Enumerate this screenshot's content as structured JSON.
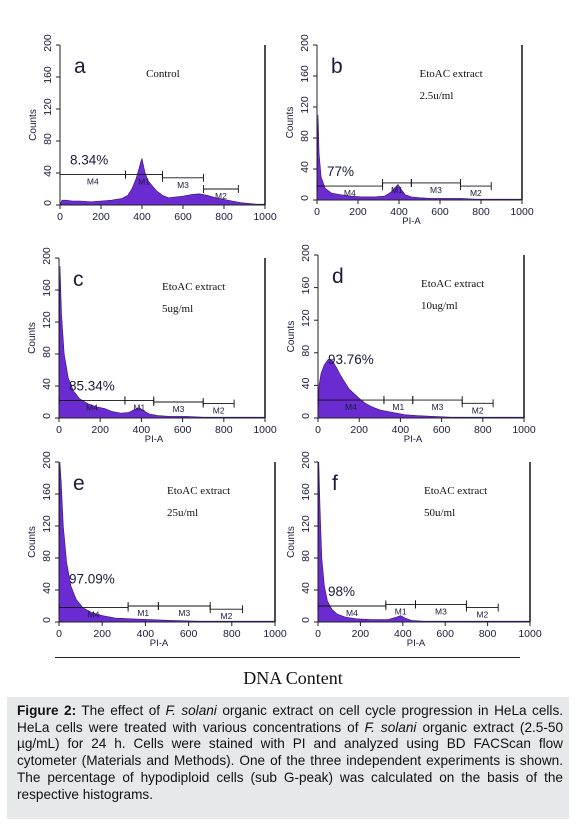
{
  "chart_data": [
    {
      "type": "area",
      "panel_letter": "a",
      "label_lines": [
        "Control"
      ],
      "percent_label": "8.34%",
      "ylabel": "Counts",
      "xlabel": "",
      "ylim": [
        0,
        200
      ],
      "xlim": [
        0,
        1000
      ],
      "yticks": [
        "0",
        "40",
        "80",
        "120",
        "160",
        "200"
      ],
      "xticks": [
        "0",
        "200",
        "400",
        "600",
        "800",
        "1000"
      ],
      "x": [
        0,
        10,
        30,
        60,
        100,
        150,
        200,
        250,
        300,
        330,
        350,
        370,
        385,
        395,
        400,
        405,
        415,
        430,
        450,
        470,
        500,
        530,
        560,
        600,
        640,
        680,
        720,
        760,
        800,
        840,
        880,
        920,
        960,
        1000
      ],
      "values": [
        0,
        6,
        6,
        5,
        5,
        4,
        5,
        6,
        8,
        12,
        20,
        32,
        45,
        55,
        58,
        52,
        40,
        30,
        24,
        18,
        12,
        9,
        10,
        11,
        13,
        14,
        12,
        9,
        7,
        5,
        3,
        2,
        1,
        1
      ],
      "gates": [
        {
          "name": "M4",
          "x0": 0,
          "x1": 320,
          "y": 38
        },
        {
          "name": "M1",
          "x0": 320,
          "x1": 500,
          "y": 38
        },
        {
          "name": "M3",
          "x0": 500,
          "x1": 700,
          "y": 34
        },
        {
          "name": "M2",
          "x0": 700,
          "x1": 870,
          "y": 20
        }
      ],
      "color": "#6a2bd1"
    },
    {
      "type": "area",
      "panel_letter": "b",
      "label_lines": [
        "EtoAC extract",
        "2.5u/ml"
      ],
      "percent_label": "77%",
      "ylabel": "Counts",
      "xlabel": "PI-A",
      "ylim": [
        0,
        200
      ],
      "xlim": [
        0,
        1000
      ],
      "yticks": [
        "0",
        "40",
        "80",
        "120",
        "160",
        "200"
      ],
      "xticks": [
        "0",
        "200",
        "400",
        "600",
        "800",
        "1000"
      ],
      "x": [
        0,
        5,
        10,
        20,
        40,
        70,
        110,
        160,
        220,
        280,
        330,
        360,
        380,
        395,
        410,
        430,
        460,
        500,
        560,
        620,
        700,
        780,
        860,
        940,
        1000
      ],
      "values": [
        0,
        110,
        60,
        30,
        15,
        9,
        7,
        5,
        4,
        4,
        5,
        10,
        16,
        20,
        14,
        7,
        4,
        3,
        2,
        2,
        2,
        1,
        1,
        1,
        1
      ],
      "gates": [
        {
          "name": "M4",
          "x0": 0,
          "x1": 320,
          "y": 18
        },
        {
          "name": "M1",
          "x0": 320,
          "x1": 460,
          "y": 22
        },
        {
          "name": "M3",
          "x0": 460,
          "x1": 700,
          "y": 22
        },
        {
          "name": "M2",
          "x0": 700,
          "x1": 850,
          "y": 18
        }
      ],
      "color": "#6a2bd1"
    },
    {
      "type": "area",
      "panel_letter": "c",
      "label_lines": [
        "EtoAC extract",
        "5ug/ml"
      ],
      "percent_label": "85.34%",
      "ylabel": "Counts",
      "xlabel": "PI-A",
      "ylim": [
        0,
        200
      ],
      "xlim": [
        0,
        1000
      ],
      "yticks": [
        "0",
        "40",
        "80",
        "120",
        "160",
        "200"
      ],
      "xticks": [
        "0",
        "200",
        "400",
        "600",
        "800",
        "1000"
      ],
      "x": [
        0,
        5,
        12,
        25,
        45,
        70,
        100,
        140,
        180,
        220,
        260,
        300,
        340,
        370,
        390,
        410,
        440,
        480,
        540,
        620,
        700,
        800,
        900,
        1000
      ],
      "values": [
        0,
        190,
        130,
        80,
        50,
        34,
        24,
        18,
        14,
        12,
        8,
        6,
        7,
        11,
        13,
        9,
        5,
        3,
        2,
        2,
        1,
        1,
        1,
        1
      ],
      "gates": [
        {
          "name": "M4",
          "x0": 0,
          "x1": 320,
          "y": 22
        },
        {
          "name": "M1",
          "x0": 320,
          "x1": 460,
          "y": 22
        },
        {
          "name": "M3",
          "x0": 460,
          "x1": 700,
          "y": 20
        },
        {
          "name": "M2",
          "x0": 700,
          "x1": 850,
          "y": 18
        }
      ],
      "color": "#6a2bd1"
    },
    {
      "type": "area",
      "panel_letter": "d",
      "label_lines": [
        "EtoAC extract",
        "10ug/ml"
      ],
      "percent_label": "93.76%",
      "ylabel": "Counts",
      "xlabel": "PI-A",
      "ylim": [
        0,
        200
      ],
      "xlim": [
        0,
        1000
      ],
      "yticks": [
        "0",
        "40",
        "80",
        "120",
        "160",
        "200"
      ],
      "xticks": [
        "0",
        "200",
        "400",
        "600",
        "800",
        "1000"
      ],
      "x": [
        0,
        5,
        15,
        30,
        50,
        70,
        90,
        110,
        130,
        150,
        175,
        200,
        230,
        260,
        300,
        340,
        380,
        420,
        480,
        560,
        650,
        750,
        850,
        1000
      ],
      "values": [
        0,
        40,
        55,
        65,
        72,
        70,
        62,
        52,
        44,
        36,
        30,
        24,
        18,
        14,
        10,
        8,
        6,
        4,
        3,
        2,
        1,
        1,
        1,
        1
      ],
      "gates": [
        {
          "name": "M4",
          "x0": 0,
          "x1": 320,
          "y": 22
        },
        {
          "name": "M1",
          "x0": 320,
          "x1": 460,
          "y": 22
        },
        {
          "name": "M3",
          "x0": 460,
          "x1": 700,
          "y": 22
        },
        {
          "name": "M2",
          "x0": 700,
          "x1": 850,
          "y": 18
        }
      ],
      "color": "#6a2bd1"
    },
    {
      "type": "area",
      "panel_letter": "e",
      "label_lines": [
        "EtoAC extract",
        "25u/ml"
      ],
      "percent_label": "97.09%",
      "ylabel": "Counts",
      "xlabel": "PI-A",
      "ylim": [
        0,
        200
      ],
      "xlim": [
        0,
        1000
      ],
      "yticks": [
        "0",
        "40",
        "80",
        "120",
        "160",
        "200"
      ],
      "xticks": [
        "0",
        "200",
        "400",
        "600",
        "800",
        "1000"
      ],
      "x": [
        0,
        4,
        10,
        20,
        35,
        55,
        80,
        110,
        150,
        200,
        260,
        330,
        420,
        520,
        650,
        800,
        1000
      ],
      "values": [
        0,
        200,
        175,
        120,
        75,
        45,
        28,
        18,
        12,
        8,
        5,
        4,
        3,
        2,
        1,
        1,
        1
      ],
      "gates": [
        {
          "name": "M4",
          "x0": 0,
          "x1": 320,
          "y": 18
        },
        {
          "name": "M1",
          "x0": 320,
          "x1": 460,
          "y": 20
        },
        {
          "name": "M3",
          "x0": 460,
          "x1": 700,
          "y": 20
        },
        {
          "name": "M2",
          "x0": 700,
          "x1": 850,
          "y": 16
        }
      ],
      "color": "#6a2bd1"
    },
    {
      "type": "area",
      "panel_letter": "f",
      "label_lines": [
        "EtoAC extract",
        "50u/ml"
      ],
      "percent_label": "98%",
      "ylabel": "Counts",
      "xlabel": "PI-A",
      "ylim": [
        0,
        200
      ],
      "xlim": [
        0,
        1000
      ],
      "yticks": [
        "0",
        "40",
        "80",
        "120",
        "160",
        "200"
      ],
      "xticks": [
        "0",
        "200",
        "400",
        "600",
        "800",
        "1000"
      ],
      "x": [
        0,
        4,
        10,
        18,
        30,
        45,
        65,
        90,
        130,
        180,
        250,
        330,
        370,
        390,
        410,
        440,
        500,
        600,
        750,
        1000
      ],
      "values": [
        0,
        200,
        140,
        80,
        45,
        26,
        16,
        10,
        6,
        4,
        3,
        3,
        6,
        8,
        5,
        2,
        1,
        1,
        1,
        1
      ],
      "gates": [
        {
          "name": "M4",
          "x0": 0,
          "x1": 320,
          "y": 20
        },
        {
          "name": "M1",
          "x0": 320,
          "x1": 460,
          "y": 22
        },
        {
          "name": "M3",
          "x0": 460,
          "x1": 700,
          "y": 22
        },
        {
          "name": "M2",
          "x0": 700,
          "x1": 850,
          "y": 18
        }
      ],
      "color": "#6a2bd1"
    }
  ],
  "figure": {
    "shared_xlabel": "DNA Content",
    "caption_label": "Figure 2:",
    "caption_parts": [
      " The effect of ",
      "F. solani",
      " organic extract on cell cycle progression in HeLa cells. HeLa cells were treated with various concentrations of ",
      "F. solani",
      " organic extract (2.5-50 µg/mL) for 24 h. Cells were stained with PI and analyzed using BD FACScan flow cytometer (Materials and Methods). One of the three independent experiments is shown. The percentage of hypodiploid cells (sub G-peak) was calculated on the basis of the respective histograms."
    ]
  }
}
